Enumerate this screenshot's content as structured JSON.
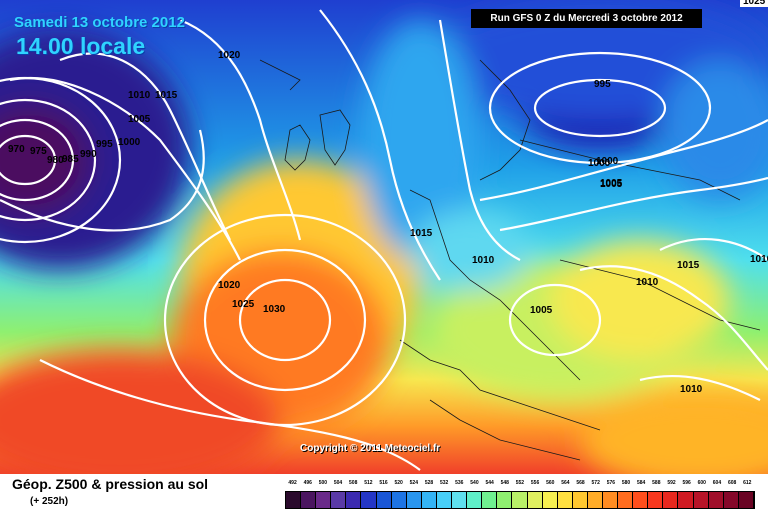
{
  "header": {
    "date_line": "Samedi 13 octobre 2012",
    "time_line": "14.00 locale",
    "run_info": "Run GFS 0 Z du Mercredi 3 octobre 2012",
    "corner_value": "1025"
  },
  "copyright": "Copyright © 2011 Meteociel.fr",
  "legend": {
    "title": "Géop. Z500 & pression au sol",
    "lead_time": "(+ 252h)",
    "scale": [
      "492",
      "496",
      "500",
      "504",
      "508",
      "512",
      "516",
      "520",
      "524",
      "528",
      "532",
      "536",
      "540",
      "544",
      "548",
      "552",
      "556",
      "560",
      "564",
      "568",
      "572",
      "576",
      "580",
      "584",
      "588",
      "592",
      "596",
      "600",
      "604",
      "608",
      "612"
    ],
    "scale_colors": [
      "#2a0a2c",
      "#4b1560",
      "#6a2a8a",
      "#5a3aa6",
      "#3b2ab0",
      "#2436c6",
      "#1a56d6",
      "#1e74e4",
      "#2a96ef",
      "#34b4f5",
      "#48cff8",
      "#5fe0ee",
      "#5ff0c8",
      "#6ff090",
      "#8ff070",
      "#b8f068",
      "#e0f060",
      "#f7f050",
      "#ffe040",
      "#ffc830",
      "#ffac28",
      "#ff8c22",
      "#ff6c1e",
      "#ff4e1c",
      "#f8381e",
      "#e8281e",
      "#d01a22",
      "#b81428",
      "#a00e2a",
      "#86082a",
      "#6a0424"
    ]
  },
  "map": {
    "contour_labels": [
      "1020",
      "1015",
      "1010",
      "1005",
      "1000",
      "995",
      "990",
      "985",
      "980",
      "975",
      "970",
      "1000",
      "995",
      "1000",
      "1005",
      "1015",
      "1010",
      "1010",
      "1005",
      "1010",
      "1015",
      "1020",
      "1025",
      "1030",
      "1010",
      "1020",
      "1005"
    ]
  }
}
